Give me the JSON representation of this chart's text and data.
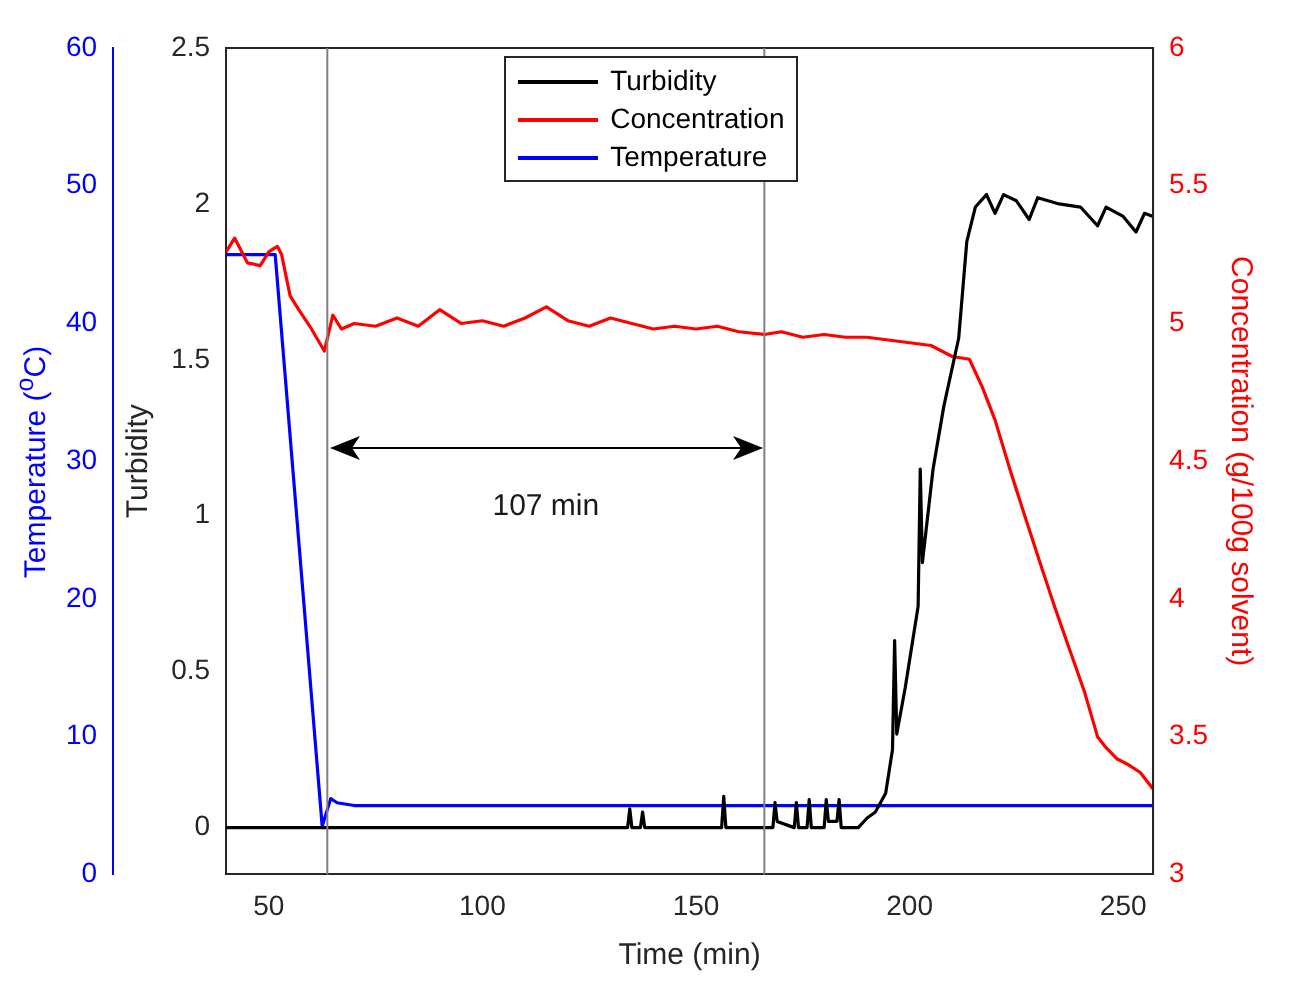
{
  "chart_data": {
    "type": "line",
    "xlabel": "Time (min)",
    "ylabel": "Turbidity",
    "y2label": "Concentration (g/100g solvent)",
    "y3label": "Temperature ($^{o}$C)",
    "xlim": [
      40,
      257
    ],
    "xticks": [
      50,
      100,
      150,
      200,
      250
    ],
    "ylim": [
      -0.15,
      2.5
    ],
    "yticks": [
      0,
      0.5,
      1,
      1.5,
      2,
      2.5
    ],
    "y2lim": [
      3,
      6
    ],
    "y2ticks": [
      3,
      3.5,
      4,
      4.5,
      5,
      5.5,
      6
    ],
    "y3lim": [
      0,
      60
    ],
    "y3ticks": [
      0,
      10,
      20,
      30,
      40,
      50,
      60
    ],
    "legend": "top",
    "grid": false,
    "marker": "none",
    "line_style": "solid",
    "series": [
      {
        "name": "Turbidity",
        "color": "#000000",
        "x": [
          40,
          134,
          134.5,
          135,
          137,
          137.5,
          138,
          156,
          156.5,
          157,
          168,
          168.5,
          169,
          173,
          173.5,
          174,
          176,
          176.5,
          177,
          180,
          180.5,
          181,
          183,
          183.5,
          184,
          188,
          190,
          192,
          194.4,
          196,
          196.5,
          197,
          199,
          202,
          202.5,
          203,
          205.5,
          208,
          211.5,
          213.4,
          215.4,
          218,
          220,
          222,
          225,
          228,
          230,
          235,
          240,
          244,
          246,
          250,
          253,
          255,
          257
        ],
        "values": [
          0,
          0,
          0.06,
          0,
          0,
          0.05,
          0,
          0,
          0.1,
          0,
          0,
          0.08,
          0.02,
          0,
          0.08,
          0,
          0,
          0.09,
          0,
          0,
          0.09,
          0.02,
          0.02,
          0.09,
          0,
          0,
          0.03,
          0.05,
          0.11,
          0.25,
          0.6,
          0.3,
          0.45,
          0.71,
          1.15,
          0.85,
          1.15,
          1.35,
          1.57,
          1.88,
          1.99,
          2.03,
          1.97,
          2.03,
          2.01,
          1.95,
          2.02,
          2,
          1.99,
          1.93,
          1.99,
          1.96,
          1.91,
          1.97,
          1.96
        ]
      },
      {
        "name": "Concentration",
        "color": "#ff0000",
        "axis": "y2",
        "x": [
          40,
          42,
          45,
          48,
          50,
          52,
          53,
          55,
          57,
          60,
          63,
          65,
          67,
          70,
          75,
          80,
          85,
          90,
          95,
          100,
          105,
          110,
          115,
          120,
          125,
          130,
          135,
          140,
          145,
          150,
          155,
          160,
          166,
          170,
          175,
          180,
          185,
          190,
          195,
          200,
          205,
          210,
          214,
          217,
          220,
          223.5,
          227,
          231,
          234,
          237.6,
          241,
          244,
          246,
          248.5,
          251,
          254,
          257
        ],
        "values": [
          5.26,
          5.31,
          5.22,
          5.21,
          5.26,
          5.28,
          5.25,
          5.1,
          5.05,
          4.98,
          4.9,
          5.03,
          4.98,
          5,
          4.99,
          5.02,
          4.99,
          5.05,
          5,
          5.01,
          4.99,
          5.02,
          5.06,
          5.01,
          4.99,
          5.02,
          5,
          4.98,
          4.99,
          4.98,
          4.99,
          4.97,
          4.96,
          4.97,
          4.95,
          4.96,
          4.95,
          4.95,
          4.94,
          4.93,
          4.92,
          4.88,
          4.87,
          4.77,
          4.65,
          4.47,
          4.3,
          4.11,
          3.97,
          3.81,
          3.66,
          3.5,
          3.46,
          3.42,
          3.4,
          3.37,
          3.31
        ]
      },
      {
        "name": "Temperature",
        "color": "#0000ff",
        "axis": "y3",
        "x": [
          40,
          51.5,
          62.5,
          64.5,
          66,
          70,
          257
        ],
        "values": [
          45,
          45,
          3.5,
          5.5,
          5.2,
          5,
          5
        ]
      }
    ],
    "ref_lines": [
      {
        "axis": "x",
        "value": 63.7,
        "color": "#808080"
      },
      {
        "axis": "x",
        "value": 166,
        "color": "#808080"
      }
    ],
    "annotations": [
      "107 min"
    ]
  }
}
